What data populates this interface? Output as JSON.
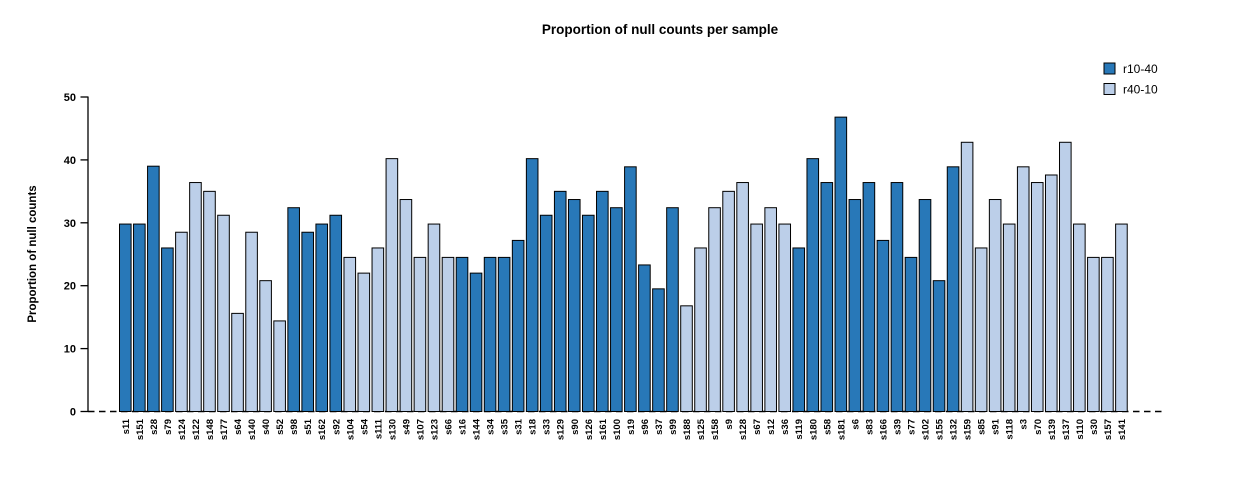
{
  "title": "Proportion of null counts per sample",
  "chart_data": {
    "type": "bar",
    "title": "Proportion of null counts per sample",
    "xlabel": "",
    "ylabel": "Proportion of null counts",
    "ylim": [
      0,
      50
    ],
    "yticks": [
      0,
      10,
      20,
      30,
      40,
      50
    ],
    "grid": false,
    "zero_line": "dashed-black",
    "legend": {
      "position": "top-right",
      "entries": [
        {
          "label": "r10-40",
          "color": "#2878b8"
        },
        {
          "label": "r40-10",
          "color": "#bccfe9"
        }
      ]
    },
    "bar_border_color": "#000000",
    "categories": [
      "s11",
      "s151",
      "s28",
      "s79",
      "s124",
      "s122",
      "s148",
      "s177",
      "s64",
      "s140",
      "s40",
      "s52",
      "s98",
      "s51",
      "s162",
      "s92",
      "s104",
      "s54",
      "s111",
      "s130",
      "s49",
      "s107",
      "s123",
      "s66",
      "s16",
      "s144",
      "s34",
      "s35",
      "s31",
      "s18",
      "s33",
      "s129",
      "s90",
      "s126",
      "s161",
      "s100",
      "s19",
      "s96",
      "s37",
      "s99",
      "s188",
      "s125",
      "s158",
      "s9",
      "s128",
      "s67",
      "s12",
      "s36",
      "s119",
      "s180",
      "s58",
      "s181",
      "s6",
      "s83",
      "s166",
      "s39",
      "s77",
      "s102",
      "s155",
      "s132",
      "s159",
      "s85",
      "s91",
      "s118",
      "s3",
      "s70",
      "s139",
      "s137",
      "s110",
      "s30",
      "s157",
      "s141"
    ],
    "values": [
      29.8,
      29.8,
      39.0,
      26.0,
      28.5,
      36.4,
      35.0,
      31.2,
      15.6,
      28.5,
      20.8,
      14.4,
      32.4,
      28.5,
      29.8,
      31.2,
      24.5,
      22.0,
      26.0,
      40.2,
      33.7,
      24.5,
      29.8,
      24.5,
      24.5,
      22.0,
      24.5,
      24.5,
      27.2,
      40.2,
      31.2,
      35.0,
      33.7,
      31.2,
      35.0,
      32.4,
      38.9,
      23.3,
      19.5,
      32.4,
      16.8,
      26.0,
      32.4,
      35.0,
      36.4,
      29.8,
      32.4,
      29.8,
      26.0,
      40.2,
      36.4,
      46.8,
      33.7,
      36.4,
      27.2,
      36.4,
      24.5,
      33.7,
      20.8,
      38.9,
      42.8,
      26.0,
      33.7,
      29.8,
      38.9,
      36.4,
      37.6,
      42.8,
      29.8,
      24.5,
      24.5,
      29.8
    ],
    "group_of_bar": [
      0,
      0,
      0,
      0,
      1,
      1,
      1,
      1,
      1,
      1,
      1,
      1,
      0,
      0,
      0,
      0,
      1,
      1,
      1,
      1,
      1,
      1,
      1,
      1,
      0,
      0,
      0,
      0,
      0,
      0,
      0,
      0,
      0,
      0,
      0,
      0,
      0,
      0,
      0,
      0,
      1,
      1,
      1,
      1,
      1,
      1,
      1,
      1,
      0,
      0,
      0,
      0,
      0,
      0,
      0,
      0,
      0,
      0,
      0,
      0,
      1,
      1,
      1,
      1,
      1,
      1,
      1,
      1,
      1,
      1,
      1,
      1
    ]
  }
}
